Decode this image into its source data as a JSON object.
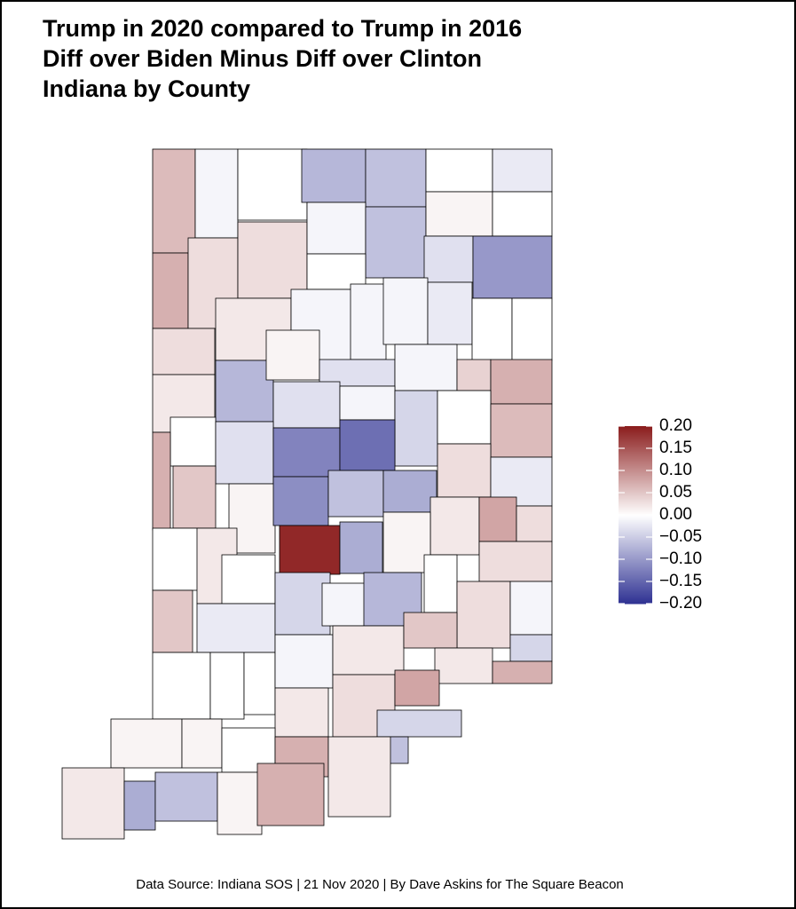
{
  "chart_data": {
    "type": "choropleth",
    "title_lines": [
      "Trump in 2020 compared to Trump in 2016",
      "Diff over Biden Minus Diff over Clinton",
      "Indiana by County"
    ],
    "caption": "Data Source: Indiana SOS | 21 Nov 2020 | By Dave Askins for The Square Beacon",
    "values": [
      0.06,
      -0.01,
      0.0,
      -0.07,
      -0.06,
      0.0,
      -0.02,
      0.07,
      0.03,
      0.03,
      -0.01,
      -0.06,
      0.01,
      0.0,
      -0.03,
      -0.1,
      0.0,
      0.02,
      -0.01,
      -0.01,
      -0.01,
      -0.02,
      0.0,
      0.0,
      0.03,
      0.02,
      -0.07,
      0.01,
      -0.03,
      -0.01,
      0.04,
      0.07,
      -0.03,
      -0.01,
      -0.04,
      0.0,
      0.06,
      0.0,
      0.07,
      -0.03,
      -0.12,
      -0.14,
      0.03,
      -0.02,
      0.05,
      0.01,
      -0.11,
      -0.06,
      -0.08,
      0.02,
      0.08,
      0.03,
      0.0,
      0.02,
      0.19,
      -0.08,
      0.01,
      0.03,
      0.0,
      0.05,
      -0.02,
      -0.04,
      -0.01,
      -0.07,
      0.0,
      0.03,
      -0.01,
      0.0,
      0.0,
      0.0,
      -0.01,
      0.02,
      0.05,
      -0.04,
      0.02,
      0.07,
      0.02,
      0.03,
      0.08,
      -0.04,
      0.01,
      0.01,
      0.0,
      0.07,
      -0.06,
      0.02,
      0.02,
      -0.08,
      -0.06,
      0.01,
      0.07
    ],
    "colors": {
      "low": "#2e3192",
      "mid": "#ffffff",
      "high": "#8b1d1d"
    },
    "ylim": [
      -0.2,
      0.2
    ],
    "yticks": [
      {
        "value": 0.2,
        "label": "0.20"
      },
      {
        "value": 0.15,
        "label": "0.15"
      },
      {
        "value": 0.1,
        "label": "0.10"
      },
      {
        "value": 0.05,
        "label": "0.05"
      },
      {
        "value": 0,
        "label": "0.00"
      },
      {
        "value": -0.05,
        "label": "−0.05"
      },
      {
        "value": -0.1,
        "label": "−0.10"
      },
      {
        "value": -0.15,
        "label": "−0.15"
      },
      {
        "value": -0.2,
        "label": "−0.20"
      }
    ]
  }
}
